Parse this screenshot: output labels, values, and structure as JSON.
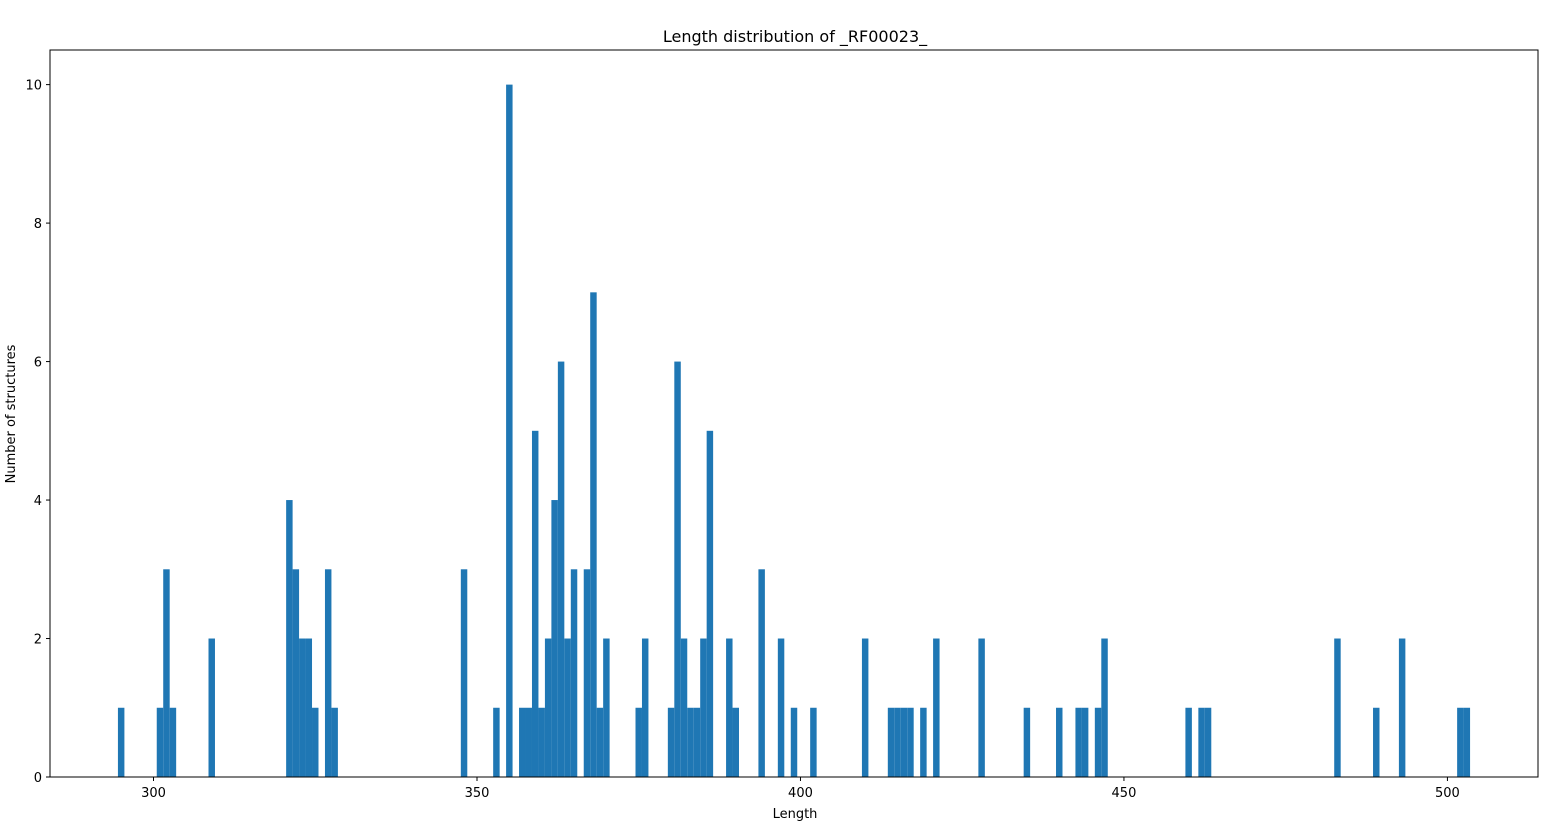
{
  "chart_data": {
    "type": "bar",
    "title": "Length distribution of _RF00023_",
    "xlabel": "Length",
    "ylabel": "Number of structures",
    "xlim": [
      284,
      514
    ],
    "ylim": [
      0,
      10.5
    ],
    "xticks": [
      300,
      350,
      400,
      450,
      500
    ],
    "yticks": [
      0,
      2,
      4,
      6,
      8,
      10
    ],
    "bar_color": "#1f77b4",
    "bin_width": 1,
    "grid": false,
    "legend": "none",
    "x": [
      295,
      301,
      302,
      303,
      309,
      321,
      322,
      323,
      324,
      325,
      327,
      328,
      348,
      353,
      355,
      357,
      358,
      359,
      360,
      361,
      362,
      363,
      364,
      365,
      367,
      368,
      369,
      370,
      375,
      376,
      380,
      381,
      382,
      383,
      384,
      385,
      386,
      389,
      390,
      394,
      397,
      399,
      402,
      410,
      414,
      415,
      416,
      417,
      419,
      421,
      428,
      435,
      440,
      443,
      444,
      446,
      447,
      460,
      462,
      463,
      483,
      489,
      493,
      502,
      503
    ],
    "values": [
      1,
      1,
      3,
      1,
      2,
      4,
      3,
      2,
      2,
      1,
      3,
      1,
      3,
      1,
      10,
      1,
      1,
      5,
      1,
      2,
      4,
      6,
      2,
      3,
      3,
      7,
      1,
      2,
      1,
      2,
      1,
      6,
      2,
      1,
      1,
      2,
      5,
      2,
      1,
      3,
      2,
      1,
      1,
      2,
      1,
      1,
      1,
      1,
      1,
      2,
      2,
      1,
      1,
      1,
      1,
      1,
      2,
      1,
      1,
      1,
      2,
      1,
      2,
      1,
      1
    ]
  }
}
